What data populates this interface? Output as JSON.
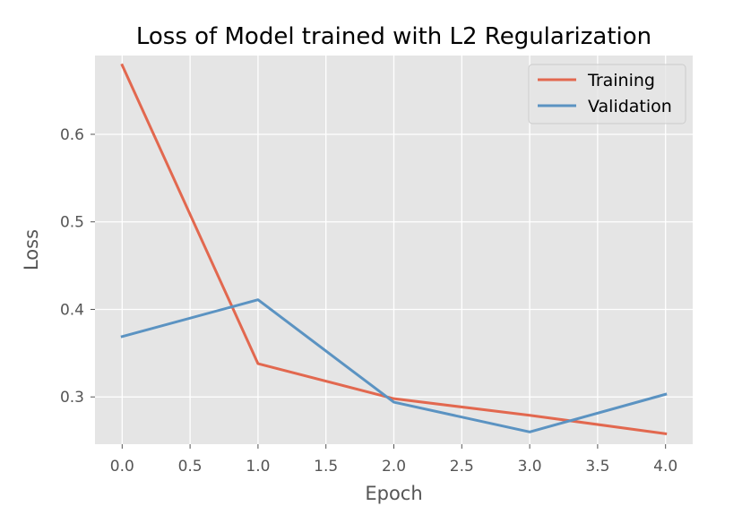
{
  "chart_data": {
    "type": "line",
    "title": "Loss of Model trained with L2 Regularization",
    "xlabel": "Epoch",
    "ylabel": "Loss",
    "xlim": [
      -0.2,
      4.2
    ],
    "ylim": [
      0.246,
      0.69
    ],
    "xticks": [
      0.0,
      0.5,
      1.0,
      1.5,
      2.0,
      2.5,
      3.0,
      3.5,
      4.0
    ],
    "xtick_labels": [
      "0.0",
      "0.5",
      "1.0",
      "1.5",
      "2.0",
      "2.5",
      "3.0",
      "3.5",
      "4.0"
    ],
    "yticks": [
      0.3,
      0.4,
      0.5,
      0.6
    ],
    "ytick_labels": [
      "0.3",
      "0.4",
      "0.5",
      "0.6"
    ],
    "grid": true,
    "legend_position": "top-right",
    "background_color": "#e5e5e5",
    "grid_color": "#ffffff",
    "x": [
      0,
      1,
      2,
      3,
      4
    ],
    "series": [
      {
        "name": "Training",
        "color": "#e2684f",
        "values": [
          0.679,
          0.338,
          0.298,
          0.279,
          0.258
        ]
      },
      {
        "name": "Validation",
        "color": "#5b93c2",
        "values": [
          0.369,
          0.411,
          0.294,
          0.26,
          0.303
        ]
      }
    ]
  }
}
